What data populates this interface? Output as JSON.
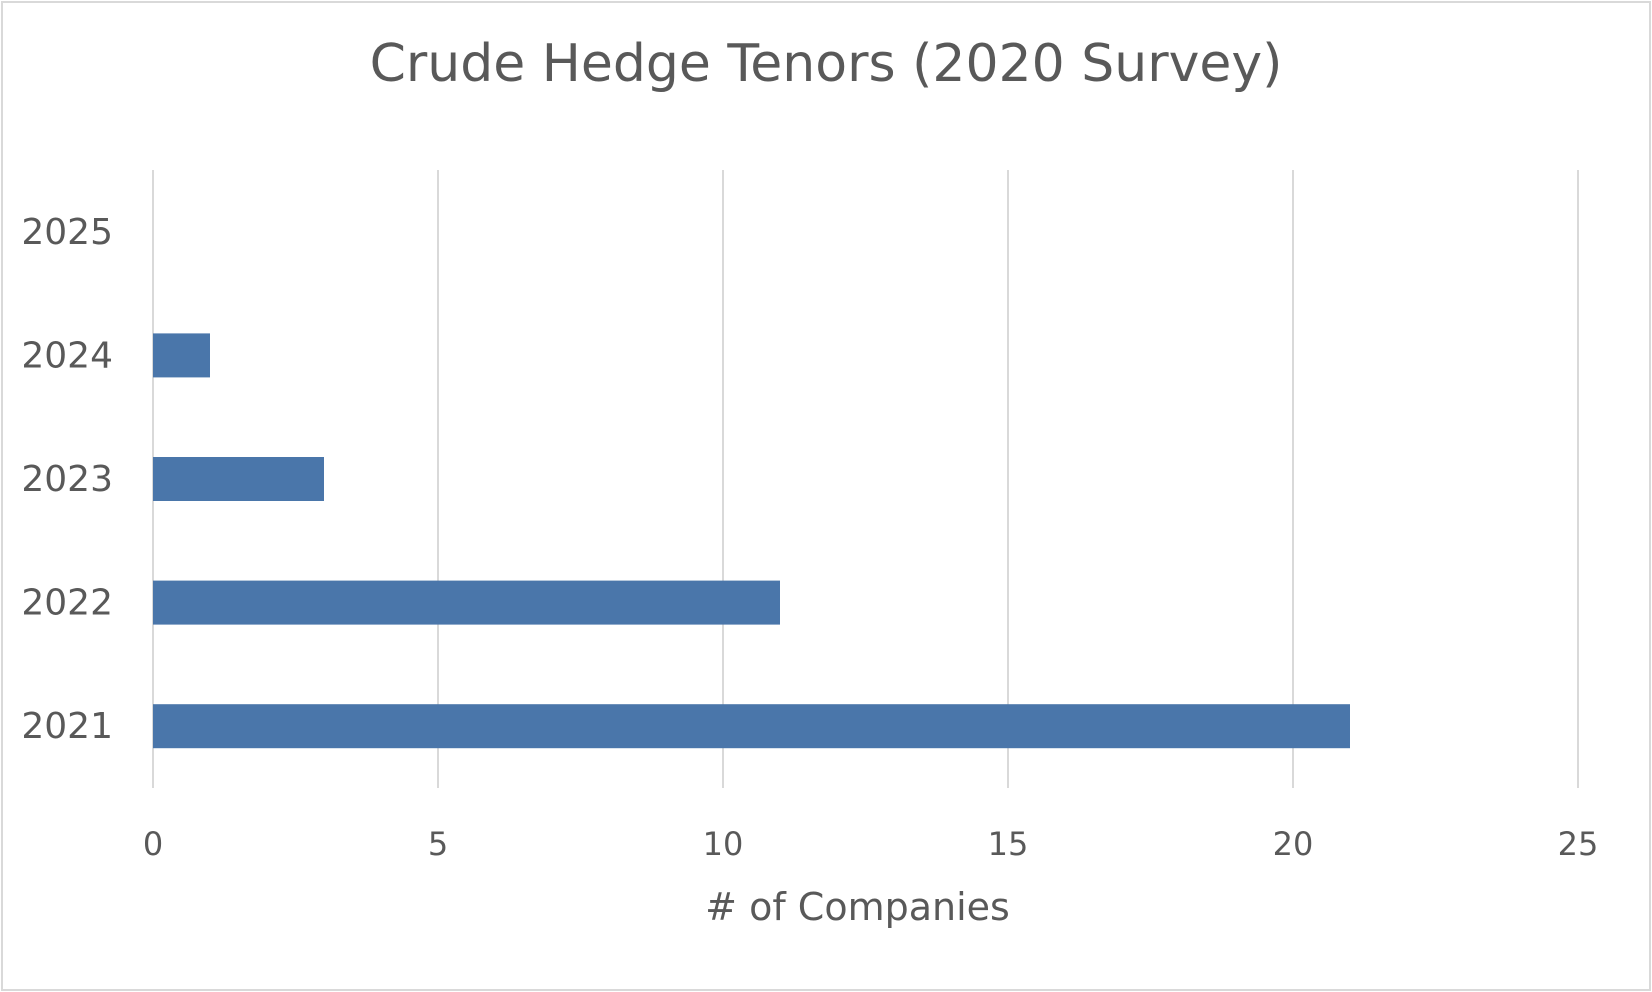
{
  "chart_data": {
    "type": "bar",
    "orientation": "horizontal",
    "title": "Crude Hedge Tenors (2020 Survey)",
    "xlabel": "# of Companies",
    "ylabel": "",
    "categories": [
      "2021",
      "2022",
      "2023",
      "2024",
      "2025"
    ],
    "values": [
      21,
      11,
      3,
      1,
      0
    ],
    "xlim": [
      0,
      25
    ],
    "xticks": [
      "0",
      "5",
      "10",
      "15",
      "20",
      "25"
    ],
    "grid": "vertical",
    "legend": "none",
    "bar_color": "#4a76aa",
    "grid_color": "#d9d9d9",
    "text_color": "#595959"
  }
}
